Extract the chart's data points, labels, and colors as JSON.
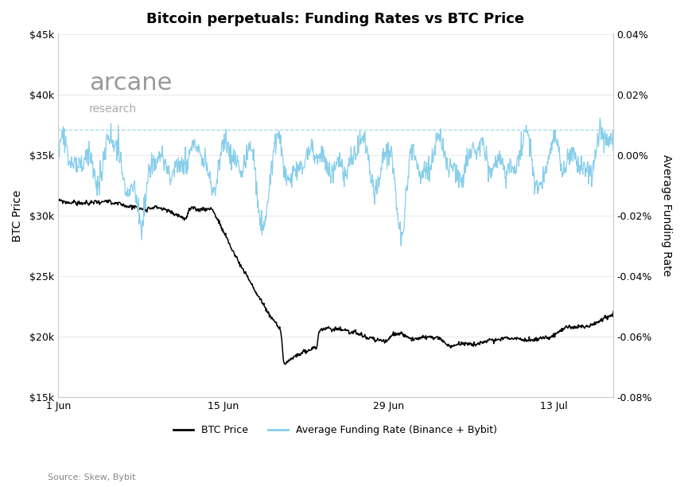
{
  "title": "Bitcoin perpetuals: Funding Rates vs BTC Price",
  "ylabel_left": "BTC Price",
  "ylabel_right": "Average Funding Rate",
  "source": "Source: Skew, Bybit",
  "legend_btc": "BTC Price",
  "legend_funding": "Average Funding Rate (Binance + Bybit)",
  "xtick_labels": [
    "1 Jun",
    "15 Jun",
    "29 Jun",
    "13 Jul"
  ],
  "xtick_positions": [
    0,
    14,
    28,
    42
  ],
  "yticks_left": [
    15000,
    20000,
    25000,
    30000,
    35000,
    40000,
    45000
  ],
  "ytick_labels_left": [
    "$15k",
    "$20k",
    "$25k",
    "$30k",
    "$35k",
    "$40k",
    "$45k"
  ],
  "yticks_right": [
    -0.0008,
    -0.0006,
    -0.0004,
    -0.0002,
    0.0,
    0.0002,
    0.0004
  ],
  "ytick_labels_right": [
    "-0.08%",
    "-0.06%",
    "-0.04%",
    "-0.02%",
    "0.00%",
    "0.02%",
    "0.04%"
  ],
  "ylim_left": [
    15000,
    45000
  ],
  "ylim_right": [
    -0.0008,
    0.0004
  ],
  "xlim": [
    0,
    47
  ],
  "background_color": "#ffffff",
  "btc_color": "#000000",
  "funding_color": "#87CEEB",
  "dashed_line_color": "#87CEEB",
  "dashed_line_y": 8.5e-05,
  "grid_color": "#e8e8e8",
  "spine_color": "#cccccc",
  "title_fontsize": 13,
  "axis_label_fontsize": 10,
  "tick_fontsize": 9,
  "legend_fontsize": 9,
  "source_fontsize": 8,
  "arcane_fontsize": 22,
  "research_fontsize": 10,
  "arcane_color": "#999999",
  "research_color": "#aaaaaa"
}
